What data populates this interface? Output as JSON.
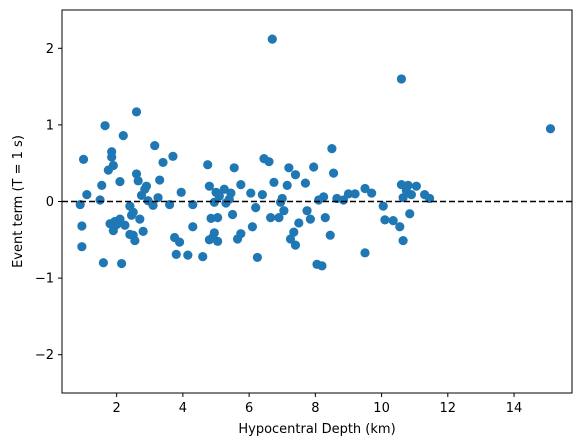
{
  "chart_data": {
    "type": "scatter",
    "xlabel": "Hypocentral Depth (km)",
    "ylabel": "Event term (T = 1 s)",
    "xlim": [
      0.35,
      15.75
    ],
    "ylim": [
      -2.5,
      2.5
    ],
    "xticks": [
      2,
      4,
      6,
      8,
      10,
      12,
      14
    ],
    "xtick_labels": [
      "2",
      "4",
      "6",
      "8",
      "10",
      "12",
      "14"
    ],
    "yticks": [
      -2,
      -1,
      0,
      1,
      2
    ],
    "ytick_labels": [
      "−2",
      "−1",
      "0",
      "1",
      "2"
    ],
    "grid": false,
    "reference_line": {
      "y": 0,
      "style": "dashed",
      "color": "#000000"
    },
    "marker_color": "#1f77b4",
    "series": [
      {
        "points": [
          [
            0.9,
            -0.04
          ],
          [
            0.95,
            -0.32
          ],
          [
            0.95,
            -0.59
          ],
          [
            1.0,
            0.55
          ],
          [
            1.1,
            0.09
          ],
          [
            1.5,
            0.02
          ],
          [
            1.55,
            0.21
          ],
          [
            1.6,
            -0.8
          ],
          [
            1.65,
            0.99
          ],
          [
            1.75,
            0.41
          ],
          [
            1.8,
            -0.29
          ],
          [
            1.85,
            0.65
          ],
          [
            1.85,
            0.58
          ],
          [
            1.9,
            0.47
          ],
          [
            1.9,
            -0.38
          ],
          [
            1.95,
            -0.26
          ],
          [
            2.0,
            -0.3
          ],
          [
            2.1,
            -0.23
          ],
          [
            2.1,
            0.26
          ],
          [
            2.15,
            -0.81
          ],
          [
            2.2,
            0.86
          ],
          [
            2.25,
            -0.31
          ],
          [
            2.4,
            -0.06
          ],
          [
            2.4,
            -0.43
          ],
          [
            2.45,
            -0.18
          ],
          [
            2.5,
            -0.14
          ],
          [
            2.5,
            -0.44
          ],
          [
            2.55,
            -0.51
          ],
          [
            2.6,
            0.36
          ],
          [
            2.6,
            1.17
          ],
          [
            2.65,
            0.27
          ],
          [
            2.7,
            -0.23
          ],
          [
            2.75,
            0.08
          ],
          [
            2.8,
            -0.39
          ],
          [
            2.85,
            0.16
          ],
          [
            2.9,
            0.2
          ],
          [
            2.95,
            0.01
          ],
          [
            3.1,
            -0.05
          ],
          [
            3.15,
            0.73
          ],
          [
            3.25,
            0.05
          ],
          [
            3.3,
            0.28
          ],
          [
            3.4,
            0.51
          ],
          [
            3.6,
            -0.04
          ],
          [
            3.7,
            0.59
          ],
          [
            3.75,
            -0.47
          ],
          [
            3.8,
            -0.69
          ],
          [
            3.9,
            -0.53
          ],
          [
            3.95,
            0.12
          ],
          [
            4.15,
            -0.7
          ],
          [
            4.3,
            -0.04
          ],
          [
            4.3,
            -0.33
          ],
          [
            4.6,
            -0.72
          ],
          [
            4.75,
            0.48
          ],
          [
            4.8,
            -0.5
          ],
          [
            4.8,
            0.2
          ],
          [
            4.85,
            -0.22
          ],
          [
            4.9,
            -0.47
          ],
          [
            4.95,
            -0.01
          ],
          [
            4.95,
            -0.41
          ],
          [
            5.0,
            0.12
          ],
          [
            5.05,
            -0.52
          ],
          [
            5.05,
            -0.21
          ],
          [
            5.1,
            0.07
          ],
          [
            5.25,
            0.16
          ],
          [
            5.3,
            -0.02
          ],
          [
            5.4,
            0.03
          ],
          [
            5.45,
            0.11
          ],
          [
            5.5,
            -0.17
          ],
          [
            5.55,
            0.44
          ],
          [
            5.65,
            -0.49
          ],
          [
            5.75,
            -0.42
          ],
          [
            5.75,
            0.22
          ],
          [
            6.05,
            0.11
          ],
          [
            6.1,
            -0.33
          ],
          [
            6.25,
            -0.73
          ],
          [
            6.2,
            -0.08
          ],
          [
            6.4,
            0.09
          ],
          [
            6.45,
            0.56
          ],
          [
            6.6,
            0.52
          ],
          [
            6.65,
            -0.21
          ],
          [
            6.7,
            2.12
          ],
          [
            6.75,
            0.25
          ],
          [
            6.9,
            -0.21
          ],
          [
            6.95,
            -0.01
          ],
          [
            7.0,
            0.04
          ],
          [
            7.05,
            -0.12
          ],
          [
            7.15,
            0.21
          ],
          [
            7.2,
            0.44
          ],
          [
            7.25,
            -0.49
          ],
          [
            7.35,
            -0.4
          ],
          [
            7.4,
            -0.57
          ],
          [
            7.4,
            0.35
          ],
          [
            7.5,
            -0.28
          ],
          [
            7.7,
            0.24
          ],
          [
            7.75,
            -0.12
          ],
          [
            7.85,
            -0.23
          ],
          [
            7.95,
            0.45
          ],
          [
            8.05,
            -0.82
          ],
          [
            8.1,
            0.02
          ],
          [
            8.2,
            -0.84
          ],
          [
            8.25,
            0.06
          ],
          [
            8.3,
            -0.21
          ],
          [
            8.45,
            -0.44
          ],
          [
            8.5,
            0.69
          ],
          [
            8.55,
            0.37
          ],
          [
            8.65,
            0.04
          ],
          [
            8.85,
            0.02
          ],
          [
            9.0,
            0.1
          ],
          [
            9.2,
            0.1
          ],
          [
            9.5,
            0.17
          ],
          [
            9.5,
            -0.67
          ],
          [
            9.7,
            0.11
          ],
          [
            10.05,
            -0.06
          ],
          [
            10.1,
            -0.24
          ],
          [
            10.35,
            -0.25
          ],
          [
            10.55,
            -0.33
          ],
          [
            10.6,
            0.22
          ],
          [
            10.6,
            1.6
          ],
          [
            10.65,
            0.05
          ],
          [
            10.65,
            -0.51
          ],
          [
            10.75,
            0.14
          ],
          [
            10.8,
            0.21
          ],
          [
            10.85,
            -0.16
          ],
          [
            10.9,
            0.09
          ],
          [
            11.05,
            0.2
          ],
          [
            11.3,
            0.09
          ],
          [
            11.45,
            0.04
          ],
          [
            15.1,
            0.95
          ]
        ]
      }
    ]
  }
}
